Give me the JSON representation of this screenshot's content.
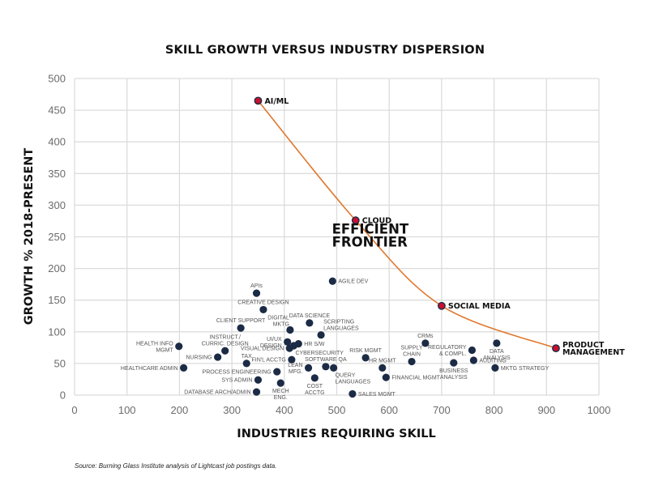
{
  "chart_data": {
    "type": "scatter",
    "title": "SKILL GROWTH VERSUS INDUSTRY DISPERSION",
    "xlabel": "INDUSTRIES REQUIRING SKILL",
    "ylabel": "GROWTH % 2018-PRESENT",
    "xlim": [
      0,
      1000
    ],
    "ylim": [
      0,
      500
    ],
    "xticks": [
      0,
      100,
      200,
      300,
      400,
      500,
      600,
      700,
      800,
      900,
      1000
    ],
    "yticks": [
      0,
      50,
      100,
      150,
      200,
      250,
      300,
      350,
      400,
      450,
      500
    ],
    "grid": true,
    "colors": {
      "point": "#1c2b45",
      "frontier_point": "#c8102e",
      "frontier_line": "#e0772e",
      "grid": "#dcdcdc"
    },
    "annotation": {
      "text_lines": [
        "EFFICIENT",
        "FRONTIER"
      ],
      "x": 630,
      "y": 232
    },
    "frontier": [
      {
        "label": [
          "AI/ML"
        ],
        "x": 350,
        "y": 465
      },
      {
        "label": [
          "CLOUD"
        ],
        "x": 536,
        "y": 276
      },
      {
        "label": [
          "SOCIAL MEDIA"
        ],
        "x": 700,
        "y": 141
      },
      {
        "label": [
          "PRODUCT",
          "MANAGEMENT"
        ],
        "x": 918,
        "y": 74
      }
    ],
    "points": [
      {
        "label": [
          "AGILE DEV"
        ],
        "x": 492,
        "y": 180,
        "pos": "right"
      },
      {
        "label": [
          "APIs"
        ],
        "x": 347,
        "y": 161,
        "pos": "top"
      },
      {
        "label": [
          "CREATIVE DESIGN"
        ],
        "x": 360,
        "y": 135,
        "pos": "top"
      },
      {
        "label": [
          "CLIENT SUPPORT"
        ],
        "x": 317,
        "y": 106,
        "pos": "top"
      },
      {
        "label": [
          "DATA SCIENCE"
        ],
        "x": 448,
        "y": 114,
        "pos": "top"
      },
      {
        "label": [
          "DIGITAL",
          "MKTG"
        ],
        "x": 411,
        "y": 103,
        "pos": "topleft"
      },
      {
        "label": [
          "SCRIPTING",
          "LANGUAGES"
        ],
        "x": 470,
        "y": 95,
        "pos": "topright"
      },
      {
        "label": [
          "UI/UX",
          "DESIGN"
        ],
        "x": 406,
        "y": 84,
        "pos": "left"
      },
      {
        "label": [
          "HR S/W"
        ],
        "x": 427,
        "y": 81,
        "pos": "right"
      },
      {
        "label": [
          "VISUAL DESIGN"
        ],
        "x": 410,
        "y": 74,
        "pos": "left"
      },
      {
        "label": [
          "CYBERSECURITY"
        ],
        "x": 418,
        "y": 78,
        "pos": "belowright"
      },
      {
        "label": [
          "HEALTH INFO",
          "MGMT"
        ],
        "x": 199,
        "y": 77,
        "pos": "left"
      },
      {
        "label": [
          "INSTRUCT./",
          "CURRIC. DESIGN"
        ],
        "x": 287,
        "y": 70,
        "pos": "top"
      },
      {
        "label": [
          "NURSING"
        ],
        "x": 273,
        "y": 60,
        "pos": "left"
      },
      {
        "label": [
          "TAX"
        ],
        "x": 328,
        "y": 50,
        "pos": "top"
      },
      {
        "label": [
          "FIN'L ACCTG"
        ],
        "x": 414,
        "y": 56,
        "pos": "left"
      },
      {
        "label": [
          "HEALTHCARE ADMIN"
        ],
        "x": 208,
        "y": 43,
        "pos": "left"
      },
      {
        "label": [
          "PROCESS ENGINEERING"
        ],
        "x": 386,
        "y": 37,
        "pos": "left"
      },
      {
        "label": [
          "SYS ADMIN"
        ],
        "x": 350,
        "y": 24,
        "pos": "left"
      },
      {
        "label": [
          "DATABASE ARCH/ADMIN"
        ],
        "x": 347,
        "y": 5,
        "pos": "left"
      },
      {
        "label": [
          "MECH",
          "ENG."
        ],
        "x": 393,
        "y": 19,
        "pos": "bottom"
      },
      {
        "label": [
          "LEAN",
          "MFG."
        ],
        "x": 446,
        "y": 43,
        "pos": "left"
      },
      {
        "label": [
          "COST",
          "ACCTG"
        ],
        "x": 458,
        "y": 27,
        "pos": "bottom"
      },
      {
        "label": [
          "SOFTWARE QA"
        ],
        "x": 479,
        "y": 45,
        "pos": "top"
      },
      {
        "label": [
          "QUERY",
          "LANGUAGES"
        ],
        "x": 494,
        "y": 43,
        "pos": "belowright"
      },
      {
        "label": [
          "RISK MGMT"
        ],
        "x": 555,
        "y": 59,
        "pos": "top"
      },
      {
        "label": [
          "HR MGMT"
        ],
        "x": 587,
        "y": 43,
        "pos": "top"
      },
      {
        "label": [
          "FINANCIAL MGMT"
        ],
        "x": 594,
        "y": 28,
        "pos": "right"
      },
      {
        "label": [
          "SALES MGMT"
        ],
        "x": 530,
        "y": 2,
        "pos": "right"
      },
      {
        "label": [
          "SUPPLY",
          "CHAIN"
        ],
        "x": 643,
        "y": 53,
        "pos": "top"
      },
      {
        "label": [
          "CRMs"
        ],
        "x": 669,
        "y": 82,
        "pos": "top"
      },
      {
        "label": [
          "REGULATORY",
          "& COMPL."
        ],
        "x": 758,
        "y": 71,
        "pos": "left"
      },
      {
        "label": [
          "BUSINESS",
          "ANALYSIS"
        ],
        "x": 723,
        "y": 51,
        "pos": "bottom"
      },
      {
        "label": [
          "AUDITING"
        ],
        "x": 761,
        "y": 55,
        "pos": "right"
      },
      {
        "label": [
          "DATA",
          "ANALYSIS"
        ],
        "x": 805,
        "y": 82,
        "pos": "bottom"
      },
      {
        "label": [
          "MKTG STRATEGY"
        ],
        "x": 802,
        "y": 43,
        "pos": "right"
      }
    ]
  },
  "source_note": "Source: Burning Glass Institute analysis of Lightcast job postings data."
}
